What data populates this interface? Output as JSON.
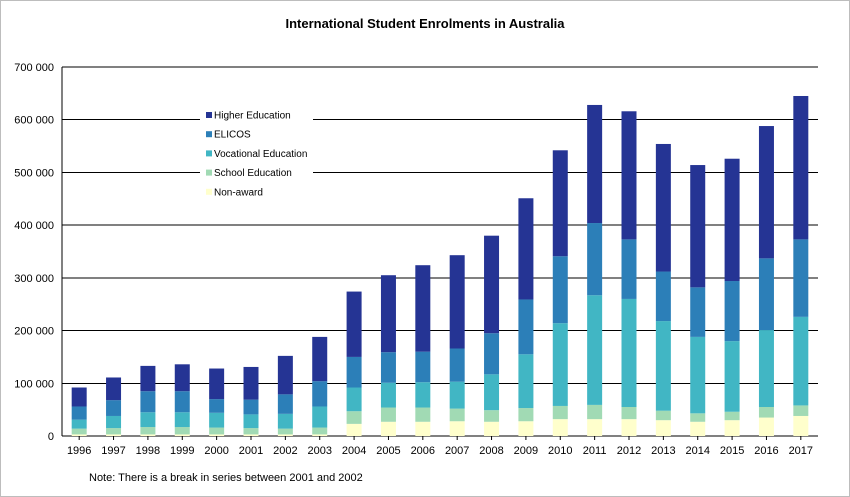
{
  "chart_data": {
    "type": "bar",
    "stacked": true,
    "title": "International Student Enrolments  in Australia",
    "note": "Note: There is a break in series between 2001 and 2002",
    "categories": [
      "1996",
      "1997",
      "1998",
      "1999",
      "2000",
      "2001",
      "2002",
      "2003",
      "2004",
      "2005",
      "2006",
      "2007",
      "2008",
      "2009",
      "2010",
      "2011",
      "2012",
      "2013",
      "2014",
      "2015",
      "2016",
      "2017"
    ],
    "ylim": [
      0,
      700000
    ],
    "yticks": [
      "0",
      "100 000",
      "200 000",
      "300 000",
      "400 000",
      "500 000",
      "600 000",
      "700 000"
    ],
    "grid": true,
    "legend_position": "top-left",
    "series": [
      {
        "name": "Non-award",
        "color": "#ffffcc",
        "values": [
          3000,
          3000,
          3000,
          3000,
          3000,
          3000,
          3000,
          3000,
          23000,
          27000,
          27000,
          28000,
          27000,
          28000,
          32000,
          32000,
          32000,
          30000,
          27000,
          30000,
          35000,
          38000
        ]
      },
      {
        "name": "School Education",
        "color": "#a1dab4",
        "values": [
          11000,
          12000,
          14000,
          14000,
          13000,
          12000,
          11000,
          13000,
          24000,
          27000,
          27000,
          24000,
          22000,
          25000,
          25000,
          27000,
          23000,
          18000,
          16000,
          16000,
          20000,
          20000
        ]
      },
      {
        "name": "Vocational Education",
        "color": "#41b6c4",
        "values": [
          17000,
          23000,
          28000,
          28000,
          28000,
          26000,
          28000,
          40000,
          45000,
          47000,
          48000,
          51000,
          68000,
          102000,
          157000,
          208000,
          205000,
          170000,
          145000,
          134000,
          146000,
          168000
        ]
      },
      {
        "name": "ELICOS",
        "color": "#2c7fb8",
        "values": [
          25000,
          30000,
          40000,
          40000,
          26000,
          28000,
          37000,
          48000,
          58000,
          58000,
          58000,
          63000,
          78000,
          104000,
          127000,
          137000,
          113000,
          94000,
          94000,
          114000,
          136000,
          147000
        ]
      },
      {
        "name": "Higher Education",
        "color": "#253494",
        "values": [
          36000,
          43000,
          48000,
          51000,
          58000,
          62000,
          73000,
          84000,
          124000,
          146000,
          164000,
          177000,
          185000,
          192000,
          201000,
          224000,
          243000,
          242000,
          232000,
          232000,
          251000,
          272000
        ]
      }
    ]
  }
}
